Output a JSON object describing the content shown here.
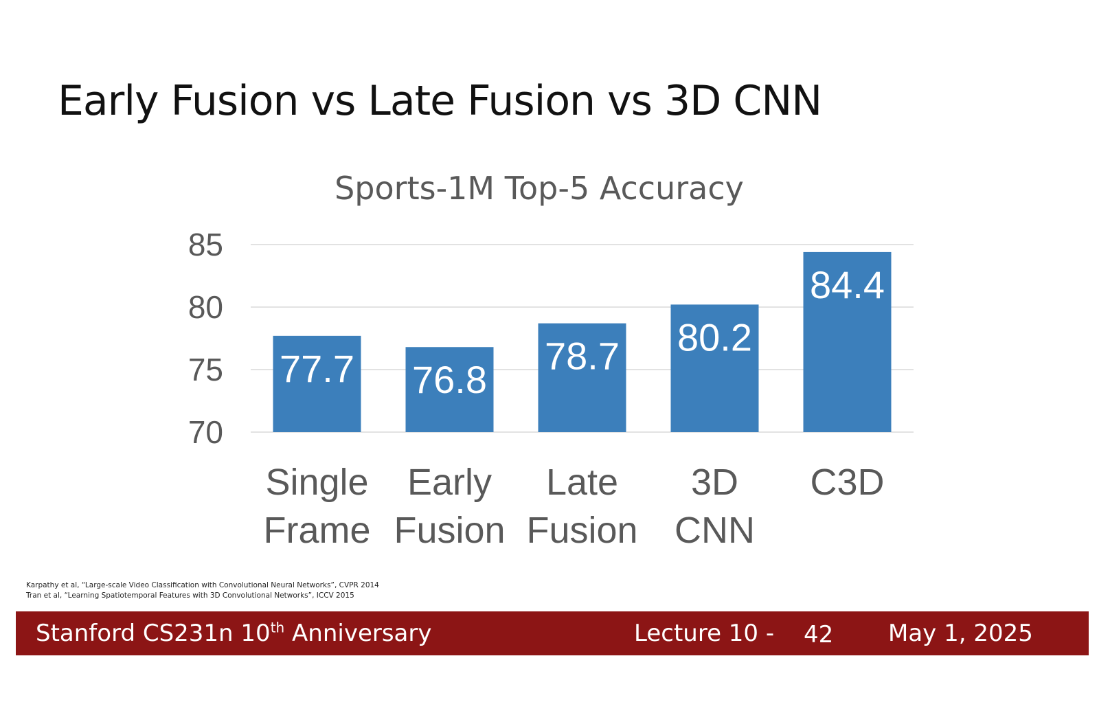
{
  "slide": {
    "title": "Early Fusion vs Late Fusion vs 3D CNN"
  },
  "chart_data": {
    "type": "bar",
    "title": "Sports-1M Top-5 Accuracy",
    "categories": [
      [
        "Single",
        "Frame"
      ],
      [
        "Early",
        "Fusion"
      ],
      [
        "Late",
        "Fusion"
      ],
      [
        "3D",
        "CNN"
      ],
      [
        "C3D"
      ]
    ],
    "values": [
      77.7,
      76.8,
      78.7,
      80.2,
      84.4
    ],
    "data_labels": [
      "77.7",
      "76.8",
      "78.7",
      "80.2",
      "84.4"
    ],
    "ylim": [
      70,
      85
    ],
    "yticks": [
      "70",
      "75",
      "80",
      "85"
    ],
    "grid": true,
    "legend": "none",
    "colors": {
      "bar": "#3c7fbb",
      "grid": "#d9d9d9"
    }
  },
  "references": [
    "Karpathy et al, “Large-scale Video Classification with Convolutional Neural Networks”, CVPR 2014",
    "Tran et al, “Learning Spatiotemporal Features with 3D Convolutional Networks”, ICCV 2015"
  ],
  "footer": {
    "course": "Stanford CS231n 10",
    "course_sup": "th",
    "course_suffix": " Anniversary",
    "lecture": "Lecture 10 -",
    "page": "42",
    "date": "May 1, 2025",
    "color": "#8c1515"
  }
}
